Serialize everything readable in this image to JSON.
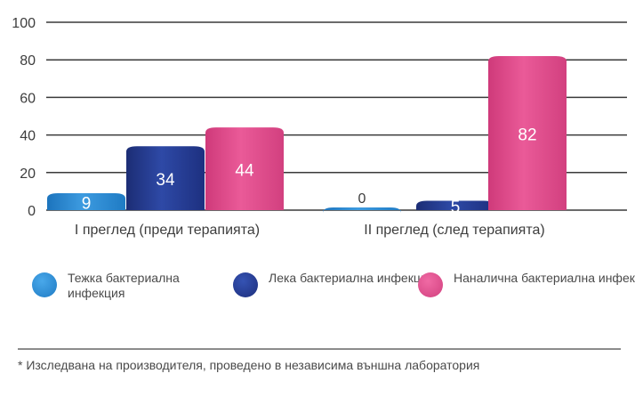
{
  "chart_data": {
    "type": "bar",
    "categories": [
      "I преглед (преди терапията)",
      "II преглед (след терапията)"
    ],
    "series": [
      {
        "name": "Тежка бактериална инфекция",
        "values": [
          9,
          0
        ],
        "color": "#2f8fd8"
      },
      {
        "name": "Лека бактериална инфекция",
        "values": [
          34,
          5
        ],
        "color": "#263c92"
      },
      {
        "name": "Наналична бактериална инфекция",
        "values": [
          44,
          82
        ],
        "color": "#e2498a"
      }
    ],
    "ylim": [
      0,
      100
    ],
    "yticks": [
      0,
      20,
      40,
      60,
      80,
      100
    ],
    "grid": true,
    "legend_position": "bottom",
    "title": "",
    "xlabel": "",
    "ylabel": ""
  },
  "legend": [
    {
      "label": "Тежка бактериална инфекция"
    },
    {
      "label": "Лека бактериална инфекция"
    },
    {
      "label": "Наналична бактериална инфекция"
    }
  ],
  "footnote": "* Изследвана на производителя, проведено в независима външна лаборатория"
}
